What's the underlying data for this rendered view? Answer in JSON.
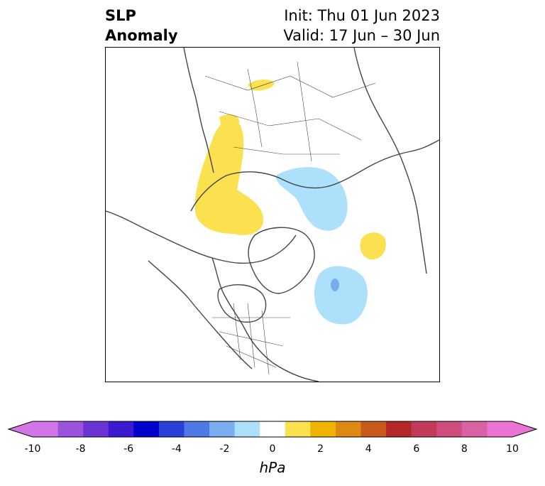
{
  "header": {
    "title_line1": "SLP",
    "title_line2": "Anomaly",
    "init_text": "Init: Thu 01 Jun 2023",
    "valid_text": "Valid: 17 Jun – 30 Jun"
  },
  "map": {
    "projection": "north-polar-stereographic",
    "coastline_color": "#444444",
    "anomaly_regions": [
      {
        "region": "scandinavia-north-europe",
        "sign": "positive",
        "approx_hpa": 1.5
      },
      {
        "region": "western-siberia-urals",
        "sign": "positive",
        "approx_hpa": 1.5
      },
      {
        "region": "kara-laptev-sea",
        "sign": "negative",
        "approx_hpa": -1.5
      },
      {
        "region": "north-atlantic-east-of-newfoundland",
        "sign": "negative",
        "approx_hpa": -1.5
      },
      {
        "region": "newfoundland-core",
        "sign": "negative",
        "approx_hpa": -2.5
      },
      {
        "region": "alaska-beaufort",
        "sign": "positive",
        "approx_hpa": 1.5
      },
      {
        "region": "eastern-europe",
        "sign": "positive",
        "approx_hpa": 1.5
      }
    ]
  },
  "colorbar": {
    "unit": "hPa",
    "extend": "both",
    "boundaries": [
      -10,
      -9,
      -8,
      -7,
      -6,
      -5,
      -4,
      -3,
      -2,
      -1,
      1,
      2,
      3,
      4,
      5,
      6,
      7,
      8,
      9,
      10
    ],
    "colors": [
      "#d275e6",
      "#9b53dd",
      "#6b35d6",
      "#3d19cf",
      "#0000cd",
      "#2a3fd8",
      "#4f7ae5",
      "#79adf0",
      "#ade0fa",
      "#ffffff",
      "#fbe050",
      "#f0b400",
      "#dc8a14",
      "#c85a1e",
      "#b42828",
      "#c23a5a",
      "#cf4e7e",
      "#da62a4",
      "#e873d3"
    ],
    "under_color": "#d275e6",
    "over_color": "#e873d3",
    "ticks": [
      "-10",
      "-8",
      "-6",
      "-4",
      "-2",
      "0",
      "2",
      "4",
      "6",
      "8",
      "10"
    ]
  }
}
